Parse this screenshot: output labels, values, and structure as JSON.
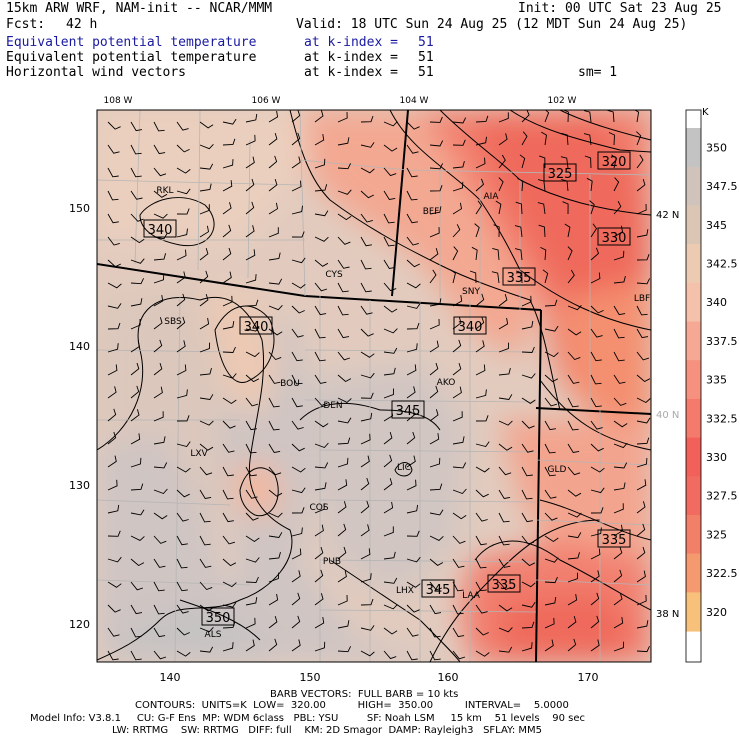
{
  "header": {
    "model": "15km ARW WRF, NAM-init -- NCAR/MMM",
    "init": "Init: 00 UTC Sat 23 Aug 25",
    "fcst_label": "Fcst:",
    "fcst_value": "42 h",
    "valid": "Valid: 18 UTC Sun 24 Aug 25 (12 MDT Sun 24 Aug 25)",
    "fields": [
      {
        "name": "Equivalent potential temperature",
        "level": "at k-index =",
        "k": "51",
        "color": "#1a1aa0"
      },
      {
        "name": "Equivalent potential temperature",
        "level": "at k-index =",
        "k": "51",
        "color": "#000000"
      },
      {
        "name": "Horizontal wind vectors",
        "level": "at k-index =",
        "k": "51",
        "color": "#000000"
      }
    ],
    "smooth": "sm= 1"
  },
  "map": {
    "lon_labels": [
      "108 W",
      "106 W",
      "104 W",
      "102 W"
    ],
    "lat_labels": [
      "42 N",
      "40 N",
      "38 N"
    ],
    "x_grid_labels": [
      "140",
      "150",
      "160",
      "170"
    ],
    "y_grid_labels": [
      "150",
      "140",
      "130",
      "120"
    ],
    "stations": [
      "RKL",
      "BFF",
      "AIA",
      "CYS",
      "SNY",
      "SBS",
      "BOU",
      "AKO",
      "DEN",
      "LIC",
      "LXV",
      "GLD",
      "COS",
      "PUB",
      "LHX",
      "LAA",
      "ALS",
      "LBF"
    ],
    "contour_labels": [
      "340",
      "340",
      "345",
      "340",
      "335",
      "330",
      "325",
      "320",
      "345",
      "335",
      "335",
      "350"
    ]
  },
  "colorbar": {
    "unit": "K",
    "ticks": [
      "350",
      "347.5",
      "345",
      "342.5",
      "340",
      "337.5",
      "335",
      "332.5",
      "330",
      "327.5",
      "325",
      "322.5",
      "320"
    ],
    "colors": [
      "#c3c3c3",
      "#cfc3bb",
      "#dbc6b6",
      "#eccbb2",
      "#f4c2aa",
      "#f5a995",
      "#f5917e",
      "#f47a6b",
      "#f2605a",
      "#f16b60",
      "#f28068",
      "#f59a6f",
      "#f7c17c"
    ]
  },
  "footer": {
    "barb": "BARB VECTORS:  FULL BARB = 10 kts",
    "contours": "CONTOURS:  UNITS=K  LOW=  320.00          HIGH=  350.00          INTERVAL=    5.0000",
    "model_info_1": "Model Info: V3.8.1     CU: G-F Ens  MP: WDM 6class   PBL: YSU         SF: Noah LSM     15 km    51 levels    90 sec",
    "model_info_2": "LW: RRTMG    SW: RRTMG   DIFF: full    KM: 2D Smagor  DAMP: Rayleigh3   SFLAY: MM5"
  }
}
